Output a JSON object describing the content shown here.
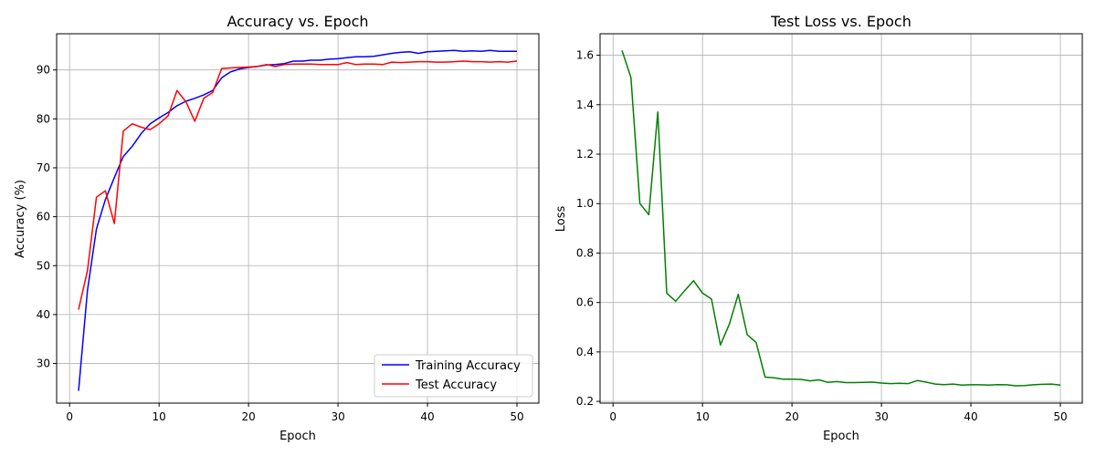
{
  "chart_data": [
    {
      "type": "line",
      "title": "Accuracy vs. Epoch",
      "xlabel": "Epoch",
      "ylabel": "Accuracy (%)",
      "xlim": [
        -1.45,
        52.45
      ],
      "ylim": [
        21.9,
        97.4
      ],
      "xticks": [
        0,
        10,
        20,
        30,
        40,
        50
      ],
      "yticks": [
        30,
        40,
        50,
        60,
        70,
        80,
        90
      ],
      "grid": true,
      "legend_position": "bottom-right",
      "x": [
        1,
        2,
        3,
        4,
        5,
        6,
        7,
        8,
        9,
        10,
        11,
        12,
        13,
        14,
        15,
        16,
        17,
        18,
        19,
        20,
        21,
        22,
        23,
        24,
        25,
        26,
        27,
        28,
        29,
        30,
        31,
        32,
        33,
        34,
        35,
        36,
        37,
        38,
        39,
        40,
        41,
        42,
        43,
        44,
        45,
        46,
        47,
        48,
        49,
        50
      ],
      "series": [
        {
          "name": "Training Accuracy",
          "color": "#0000ff",
          "values": [
            24.4,
            45.0,
            57.5,
            63.5,
            68.0,
            72.3,
            74.4,
            77.0,
            79.0,
            80.2,
            81.3,
            82.7,
            83.6,
            84.2,
            84.9,
            85.8,
            88.4,
            89.6,
            90.2,
            90.5,
            90.7,
            91.0,
            91.1,
            91.3,
            91.8,
            91.8,
            92.0,
            92.0,
            92.2,
            92.3,
            92.5,
            92.7,
            92.7,
            92.8,
            93.1,
            93.4,
            93.6,
            93.7,
            93.4,
            93.7,
            93.8,
            93.9,
            94.0,
            93.8,
            93.9,
            93.8,
            94.0,
            93.8,
            93.8,
            93.8
          ]
        },
        {
          "name": "Test Accuracy",
          "color": "#ff0000",
          "values": [
            41.0,
            49.0,
            64.0,
            65.3,
            58.6,
            77.5,
            79.0,
            78.3,
            77.8,
            79.0,
            80.6,
            85.8,
            83.5,
            79.5,
            84.2,
            85.4,
            90.3,
            90.4,
            90.5,
            90.6,
            90.7,
            91.1,
            90.7,
            91.1,
            91.2,
            91.2,
            91.2,
            91.1,
            91.1,
            91.1,
            91.5,
            91.1,
            91.2,
            91.2,
            91.1,
            91.6,
            91.5,
            91.6,
            91.7,
            91.7,
            91.6,
            91.6,
            91.7,
            91.8,
            91.7,
            91.7,
            91.6,
            91.7,
            91.6,
            91.8
          ]
        }
      ]
    },
    {
      "type": "line",
      "title": "Test Loss vs. Epoch",
      "xlabel": "Epoch",
      "ylabel": "Loss",
      "xlim": [
        -1.45,
        52.45
      ],
      "ylim": [
        0.193,
        1.687
      ],
      "xticks": [
        0,
        10,
        20,
        30,
        40,
        50
      ],
      "yticks": [
        0.2,
        0.4,
        0.6,
        0.8,
        1.0,
        1.2,
        1.4,
        1.6
      ],
      "ytick_labels": [
        "0.2",
        "0.4",
        "0.6",
        "0.8",
        "1.0",
        "1.2",
        "1.4",
        "1.6"
      ],
      "grid": true,
      "x": [
        1,
        2,
        3,
        4,
        5,
        6,
        7,
        8,
        9,
        10,
        11,
        12,
        13,
        14,
        15,
        16,
        17,
        18,
        19,
        20,
        21,
        22,
        23,
        24,
        25,
        26,
        27,
        28,
        29,
        30,
        31,
        32,
        33,
        34,
        35,
        36,
        37,
        38,
        39,
        40,
        41,
        42,
        43,
        44,
        45,
        46,
        47,
        48,
        49,
        50
      ],
      "series": [
        {
          "color": "#008000",
          "values": [
            1.62,
            1.51,
            1.0,
            0.955,
            1.37,
            0.638,
            0.605,
            0.648,
            0.688,
            0.638,
            0.614,
            0.428,
            0.513,
            0.633,
            0.47,
            0.438,
            0.298,
            0.295,
            0.29,
            0.29,
            0.289,
            0.283,
            0.287,
            0.277,
            0.28,
            0.276,
            0.276,
            0.277,
            0.278,
            0.274,
            0.272,
            0.273,
            0.272,
            0.284,
            0.278,
            0.27,
            0.268,
            0.27,
            0.266,
            0.267,
            0.267,
            0.266,
            0.268,
            0.267,
            0.263,
            0.264,
            0.267,
            0.269,
            0.27,
            0.266
          ]
        }
      ]
    }
  ]
}
